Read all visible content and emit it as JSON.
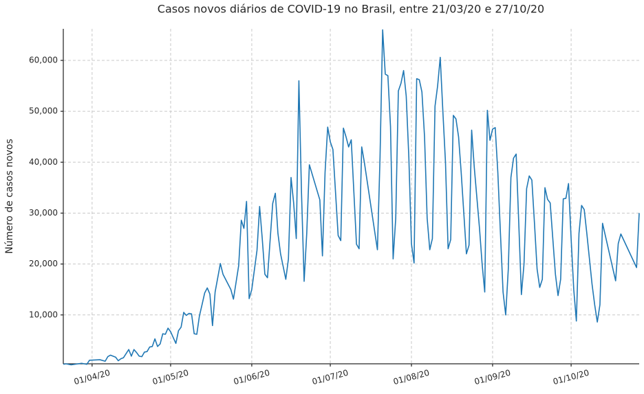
{
  "chart_data": {
    "type": "line",
    "title": "Casos novos diários de COVID-19 no Brasil, entre 21/03/20 e 27/10/20",
    "y_label": "Número de casos novos",
    "x": [
      "2020-03-21",
      "2020-03-22",
      "2020-03-24",
      "2020-03-28",
      "2020-03-30",
      "2020-03-31",
      "2020-04-04",
      "2020-04-06",
      "2020-04-07",
      "2020-04-08",
      "2020-04-10",
      "2020-04-11",
      "2020-04-12",
      "2020-04-13",
      "2020-04-15",
      "2020-04-16",
      "2020-04-17",
      "2020-04-18",
      "2020-04-19",
      "2020-04-20",
      "2020-04-21",
      "2020-04-22",
      "2020-04-23",
      "2020-04-24",
      "2020-04-25",
      "2020-04-26",
      "2020-04-27",
      "2020-04-28",
      "2020-04-29",
      "2020-04-30",
      "2020-05-01",
      "2020-05-03",
      "2020-05-04",
      "2020-05-05",
      "2020-05-06",
      "2020-05-07",
      "2020-05-08",
      "2020-05-09",
      "2020-05-10",
      "2020-05-11",
      "2020-05-12",
      "2020-05-13",
      "2020-05-14",
      "2020-05-15",
      "2020-05-16",
      "2020-05-17",
      "2020-05-18",
      "2020-05-20",
      "2020-05-21",
      "2020-05-24",
      "2020-05-25",
      "2020-05-27",
      "2020-05-28",
      "2020-05-29",
      "2020-05-30",
      "2020-05-31",
      "2020-06-01",
      "2020-06-03",
      "2020-06-04",
      "2020-06-05",
      "2020-06-06",
      "2020-06-07",
      "2020-06-09",
      "2020-06-10",
      "2020-06-11",
      "2020-06-12",
      "2020-06-14",
      "2020-06-15",
      "2020-06-16",
      "2020-06-17",
      "2020-06-18",
      "2020-06-19",
      "2020-06-20",
      "2020-06-21",
      "2020-06-22",
      "2020-06-23",
      "2020-06-27",
      "2020-06-28",
      "2020-06-29",
      "2020-06-30",
      "2020-07-01",
      "2020-07-02",
      "2020-07-04",
      "2020-07-05",
      "2020-07-06",
      "2020-07-07",
      "2020-07-08",
      "2020-07-09",
      "2020-07-11",
      "2020-07-12",
      "2020-07-13",
      "2020-07-14",
      "2020-07-19",
      "2020-07-20",
      "2020-07-21",
      "2020-07-22",
      "2020-07-23",
      "2020-07-24",
      "2020-07-25",
      "2020-07-26",
      "2020-07-27",
      "2020-07-28",
      "2020-07-29",
      "2020-07-30",
      "2020-07-31",
      "2020-08-01",
      "2020-08-02",
      "2020-08-03",
      "2020-08-04",
      "2020-08-05",
      "2020-08-06",
      "2020-08-07",
      "2020-08-08",
      "2020-08-09",
      "2020-08-10",
      "2020-08-11",
      "2020-08-12",
      "2020-08-13",
      "2020-08-14",
      "2020-08-15",
      "2020-08-16",
      "2020-08-17",
      "2020-08-18",
      "2020-08-19",
      "2020-08-20",
      "2020-08-21",
      "2020-08-22",
      "2020-08-23",
      "2020-08-24",
      "2020-08-25",
      "2020-08-26",
      "2020-08-27",
      "2020-08-28",
      "2020-08-29",
      "2020-08-30",
      "2020-08-31",
      "2020-09-01",
      "2020-09-02",
      "2020-09-03",
      "2020-09-04",
      "2020-09-05",
      "2020-09-06",
      "2020-09-07",
      "2020-09-08",
      "2020-09-09",
      "2020-09-10",
      "2020-09-11",
      "2020-09-12",
      "2020-09-13",
      "2020-09-14",
      "2020-09-15",
      "2020-09-16",
      "2020-09-17",
      "2020-09-18",
      "2020-09-19",
      "2020-09-20",
      "2020-09-21",
      "2020-09-22",
      "2020-09-23",
      "2020-09-24",
      "2020-09-25",
      "2020-09-26",
      "2020-09-27",
      "2020-09-28",
      "2020-09-29",
      "2020-09-30",
      "2020-10-01",
      "2020-10-02",
      "2020-10-03",
      "2020-10-04",
      "2020-10-05",
      "2020-10-06",
      "2020-10-07",
      "2020-10-08",
      "2020-10-09",
      "2020-10-10",
      "2020-10-11",
      "2020-10-12",
      "2020-10-13",
      "2020-10-18",
      "2020-10-19",
      "2020-10-20",
      "2020-10-26",
      "2020-10-27"
    ],
    "series": [
      {
        "name": "Casos novos",
        "color": "#1f77b4",
        "values": [
          300,
          400,
          200,
          500,
          300,
          1100,
          1200,
          900,
          1800,
          2100,
          1700,
          1000,
          1400,
          1600,
          3200,
          1900,
          3200,
          2600,
          1900,
          1800,
          2700,
          2800,
          3700,
          3800,
          5300,
          3800,
          4300,
          6300,
          6200,
          7400,
          6700,
          4400,
          6900,
          7600,
          10500,
          9900,
          10300,
          10200,
          6300,
          6200,
          9800,
          12000,
          14300,
          15300,
          14100,
          7900,
          14500,
          20100,
          18000,
          15000,
          13100,
          19700,
          28600,
          27000,
          32300,
          13200,
          15000,
          22700,
          31300,
          25000,
          18000,
          17300,
          31900,
          33900,
          26000,
          22000,
          17000,
          21000,
          37000,
          32000,
          25000,
          56000,
          34000,
          16600,
          26000,
          39500,
          32600,
          21600,
          38000,
          46900,
          44000,
          42500,
          25600,
          24600,
          46700,
          45000,
          43000,
          44400,
          23900,
          23000,
          43000,
          40000,
          22800,
          41000,
          66000,
          57300,
          57000,
          47000,
          21000,
          29000,
          54000,
          55500,
          58000,
          53000,
          41000,
          24000,
          20200,
          56400,
          56200,
          53800,
          45000,
          29000,
          22800,
          25000,
          51000,
          55000,
          60600,
          50000,
          40000,
          23000,
          24800,
          49200,
          48500,
          45000,
          38000,
          30000,
          22000,
          23700,
          46300,
          39000,
          33000,
          27000,
          20000,
          14500,
          50200,
          44300,
          46500,
          46800,
          38000,
          26000,
          14500,
          10000,
          19000,
          37000,
          40800,
          41600,
          28000,
          14000,
          20000,
          34800,
          37300,
          36500,
          28000,
          19000,
          15400,
          17000,
          35000,
          32700,
          32000,
          25000,
          18000,
          13800,
          17000,
          32800,
          32900,
          35800,
          25000,
          15000,
          8800,
          26000,
          31500,
          30700,
          26000,
          21000,
          16000,
          12000,
          8600,
          12000,
          28000,
          16700,
          24000,
          25900,
          19300,
          30000
        ]
      }
    ],
    "xlim": [
      "2020-03-21",
      "2020-10-27"
    ],
    "xticks": [
      {
        "value": "2020-04-01",
        "label": "01/04/20"
      },
      {
        "value": "2020-05-01",
        "label": "01/05/20"
      },
      {
        "value": "2020-06-01",
        "label": "01/06/20"
      },
      {
        "value": "2020-07-01",
        "label": "01/07/20"
      },
      {
        "value": "2020-08-01",
        "label": "01/08/20"
      },
      {
        "value": "2020-09-01",
        "label": "01/09/20"
      },
      {
        "value": "2020-10-01",
        "label": "01/10/20"
      }
    ],
    "ylim": [
      400,
      66200
    ],
    "yticks": [
      {
        "value": 10000,
        "label": "10,000"
      },
      {
        "value": 20000,
        "label": "20,000"
      },
      {
        "value": 30000,
        "label": "30,000"
      },
      {
        "value": 40000,
        "label": "40,000"
      },
      {
        "value": 50000,
        "label": "50,000"
      },
      {
        "value": 60000,
        "label": "60,000"
      }
    ],
    "grid": true
  }
}
